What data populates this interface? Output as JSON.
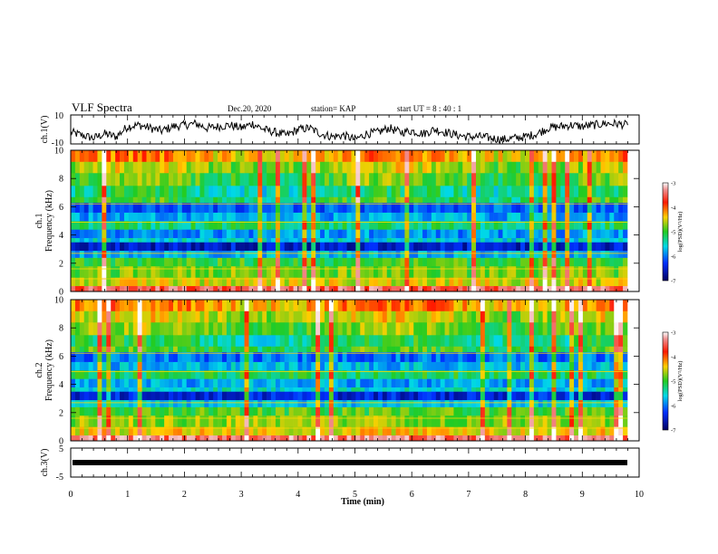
{
  "header": {
    "title": "VLF Spectra",
    "date": "Dec.20, 2020",
    "station": "station= KAP",
    "start": "start  UT =  8 : 40 : 1"
  },
  "colorbar_ticks": [
    "-3",
    "-4",
    "-5",
    "-6",
    "-7"
  ],
  "colorbar_label": "log(PSD)(V²/Hz)",
  "chart_data": [
    {
      "type": "line",
      "name": "ch1-waveform",
      "ylabel": "ch.1(V)",
      "ylim": [
        -10,
        10
      ],
      "yticks": [
        "10",
        "-10"
      ],
      "xlim": [
        0,
        10
      ],
      "series": [
        {
          "x": [
            0.0,
            0.2,
            0.4,
            0.6,
            0.8,
            1.0,
            1.2,
            1.4,
            1.6,
            1.8,
            2.0,
            2.2,
            2.4,
            2.6,
            2.8,
            3.0,
            3.2,
            3.4,
            3.6,
            3.8,
            4.0,
            4.2,
            4.4,
            4.6,
            4.8,
            5.0,
            5.2,
            5.4,
            5.6,
            5.8,
            6.0,
            6.2,
            6.4,
            6.6,
            6.8,
            7.0,
            7.2,
            7.4,
            7.6,
            7.8,
            8.0,
            8.2,
            8.4,
            8.6,
            8.8,
            9.0,
            9.2,
            9.4,
            9.6,
            9.8
          ],
          "y": [
            -2,
            -4,
            -6,
            -3,
            -5,
            2,
            3,
            1,
            -1,
            2,
            3,
            4,
            1,
            2,
            3,
            1,
            4,
            0,
            -2,
            -4,
            0,
            1,
            -3,
            -5,
            -4,
            -7,
            -3,
            -2,
            1,
            -2,
            -1,
            -3,
            0,
            -2,
            -4,
            -5,
            -5,
            -6,
            -7,
            -6,
            -5,
            -3,
            1,
            2,
            3,
            2,
            3,
            4,
            4,
            3
          ]
        }
      ]
    },
    {
      "type": "heatmap",
      "name": "ch1-spectrogram",
      "ylabel": "ch.1 Frequency (kHz)",
      "ylim": [
        0,
        10
      ],
      "xlim": [
        0,
        10
      ],
      "yticks": [
        "0",
        "2",
        "4",
        "6",
        "8",
        "10"
      ],
      "colorbar_range": [
        -7,
        -3
      ],
      "colorbar_scale": [
        "-3",
        "-4",
        "-5",
        "-6",
        "-7"
      ]
    },
    {
      "type": "heatmap",
      "name": "ch2-spectrogram",
      "ylabel": "ch.2 Frequency (kHz)",
      "ylim": [
        0,
        10
      ],
      "xlim": [
        0,
        10
      ],
      "yticks": [
        "0",
        "2",
        "4",
        "6",
        "8",
        "10"
      ],
      "colorbar_range": [
        -7,
        -3
      ],
      "colorbar_scale": [
        "-3",
        "-4",
        "-5",
        "-6",
        "-7"
      ]
    },
    {
      "type": "line",
      "name": "ch3-waveform",
      "ylabel": "ch.3(V)",
      "ylim": [
        -5,
        5
      ],
      "yticks": [
        "5",
        "-5"
      ],
      "xlim": [
        0,
        10
      ],
      "series": [
        {
          "x": [
            0,
            9.8
          ],
          "y": [
            0,
            0
          ]
        }
      ]
    }
  ],
  "xaxis": {
    "label": "Time (min)",
    "ticks": [
      "0",
      "1",
      "2",
      "3",
      "4",
      "5",
      "6",
      "7",
      "8",
      "9",
      "10"
    ]
  }
}
